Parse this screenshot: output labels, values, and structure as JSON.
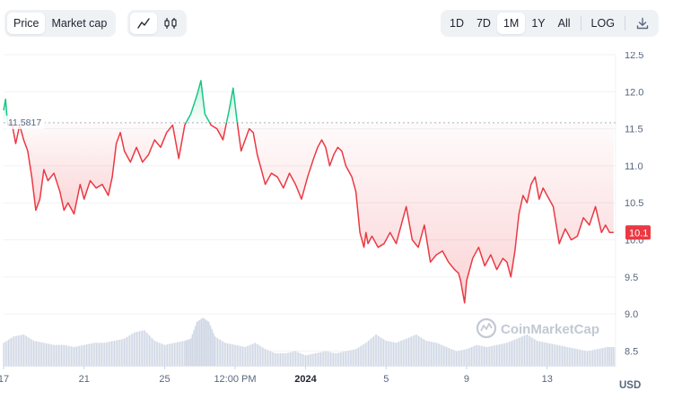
{
  "toolbar": {
    "type_options": [
      "Price",
      "Market cap"
    ],
    "active_type": "Price",
    "view_options": [
      {
        "name": "line-chart-icon"
      },
      {
        "name": "candlestick-icon"
      }
    ],
    "active_view": "line-chart-icon",
    "ranges": [
      "1D",
      "7D",
      "1M",
      "1Y",
      "All"
    ],
    "active_range": "1M",
    "log_label": "LOG",
    "download_icon": "download-icon"
  },
  "watermark": "CoinMarketCap",
  "currency": "USD",
  "colors": {
    "up": "#16c784",
    "down": "#ea3943",
    "price_tag_bg": "#ea3943",
    "axis_text": "#58667e",
    "volume": "#cfd6e4"
  },
  "chart_data": {
    "type": "line",
    "title": "",
    "xlabel": "",
    "ylabel": "",
    "ylim": [
      8.3,
      12.5
    ],
    "yticks": [
      8.5,
      9.0,
      9.5,
      10.0,
      10.5,
      11.0,
      11.5,
      12.0,
      12.5
    ],
    "ytick_labels": [
      "8.5",
      "9.0",
      "9.5",
      "10.0",
      "10.5",
      "11.0",
      "11.5",
      "12.0",
      "12.5"
    ],
    "xlim": [
      0,
      30.4
    ],
    "xticks": [
      {
        "x": 0.0,
        "label": "17",
        "bold": false
      },
      {
        "x": 4.0,
        "label": "21",
        "bold": false
      },
      {
        "x": 8.0,
        "label": "25",
        "bold": false
      },
      {
        "x": 11.5,
        "label": "12:00 PM",
        "bold": false
      },
      {
        "x": 15.0,
        "label": "2024",
        "bold": true
      },
      {
        "x": 19.0,
        "label": "5",
        "bold": false
      },
      {
        "x": 23.0,
        "label": "9",
        "bold": false
      },
      {
        "x": 27.0,
        "label": "13",
        "bold": false
      }
    ],
    "baseline": 11.5817,
    "baseline_label": "11.5817",
    "last_price": 10.1,
    "last_price_label": "10.1",
    "grid": true,
    "series": [
      {
        "x": [
          0.0,
          0.1,
          0.2,
          0.4,
          0.6,
          0.8,
          1.0,
          1.2,
          1.4,
          1.6,
          1.8,
          2.0,
          2.2,
          2.5,
          2.8,
          3.0,
          3.2,
          3.5,
          3.8,
          4.0,
          4.3,
          4.6,
          4.9,
          5.2,
          5.4,
          5.6,
          5.8,
          6.0,
          6.3,
          6.6,
          6.9,
          7.2,
          7.5,
          7.8,
          8.1,
          8.4,
          8.7,
          9.0,
          9.3,
          9.6,
          9.8,
          10.0,
          10.3,
          10.6,
          10.9,
          11.2,
          11.4,
          11.6,
          11.8,
          12.0,
          12.2,
          12.4,
          12.6,
          12.8,
          13.0,
          13.3,
          13.6,
          13.9,
          14.2,
          14.5,
          14.8,
          15.1,
          15.4,
          15.6,
          15.8,
          16.0,
          16.2,
          16.4,
          16.6,
          16.8,
          17.0,
          17.3,
          17.5,
          17.7,
          17.9,
          18.0,
          18.1,
          18.3,
          18.6,
          18.9,
          19.2,
          19.5,
          19.8,
          20.0,
          20.3,
          20.6,
          20.9,
          21.2,
          21.5,
          21.8,
          22.1,
          22.4,
          22.6,
          22.7,
          22.8,
          22.9,
          23.0,
          23.3,
          23.6,
          23.9,
          24.2,
          24.5,
          24.8,
          25.0,
          25.2,
          25.4,
          25.6,
          25.8,
          26.0,
          26.2,
          26.4,
          26.6,
          26.8,
          27.0,
          27.3,
          27.6,
          27.9,
          28.2,
          28.5,
          28.8,
          29.1,
          29.4,
          29.7,
          29.9,
          30.1,
          30.3
        ],
        "y": [
          11.75,
          11.9,
          11.55,
          11.6,
          11.3,
          11.55,
          11.35,
          11.2,
          10.85,
          10.4,
          10.55,
          10.95,
          10.8,
          10.9,
          10.65,
          10.4,
          10.5,
          10.35,
          10.75,
          10.55,
          10.8,
          10.7,
          10.75,
          10.6,
          10.85,
          11.3,
          11.45,
          11.2,
          11.05,
          11.25,
          11.05,
          11.15,
          11.35,
          11.25,
          11.45,
          11.55,
          11.1,
          11.55,
          11.7,
          11.95,
          12.15,
          11.7,
          11.55,
          11.5,
          11.35,
          11.75,
          12.05,
          11.6,
          11.2,
          11.35,
          11.5,
          11.45,
          11.15,
          10.95,
          10.75,
          10.9,
          10.85,
          10.7,
          10.9,
          10.75,
          10.55,
          10.85,
          11.1,
          11.25,
          11.35,
          11.25,
          11.0,
          11.15,
          11.25,
          11.2,
          11.0,
          10.85,
          10.65,
          10.1,
          9.9,
          10.1,
          9.95,
          10.05,
          9.9,
          9.95,
          10.1,
          9.95,
          10.25,
          10.45,
          10.0,
          9.9,
          10.2,
          9.7,
          9.8,
          9.85,
          9.7,
          9.6,
          9.55,
          9.45,
          9.3,
          9.15,
          9.45,
          9.75,
          9.9,
          9.65,
          9.8,
          9.6,
          9.75,
          9.7,
          9.5,
          9.85,
          10.35,
          10.6,
          10.5,
          10.75,
          10.85,
          10.55,
          10.7,
          10.6,
          10.45,
          9.95,
          10.15,
          10.0,
          10.05,
          10.3,
          10.2,
          10.45,
          10.1,
          10.2,
          10.1,
          10.1
        ]
      }
    ],
    "volume": {
      "x": [
        0.0,
        0.5,
        1.0,
        1.5,
        2.0,
        2.5,
        3.0,
        3.5,
        4.0,
        4.5,
        5.0,
        5.5,
        6.0,
        6.5,
        7.0,
        7.5,
        8.0,
        8.5,
        9.0,
        9.3,
        9.6,
        9.9,
        10.2,
        10.5,
        11.0,
        11.5,
        12.0,
        12.5,
        13.0,
        13.5,
        14.0,
        14.5,
        15.0,
        15.5,
        16.0,
        16.5,
        17.0,
        17.5,
        18.0,
        18.5,
        19.0,
        19.5,
        20.0,
        20.5,
        21.0,
        21.5,
        22.0,
        22.5,
        23.0,
        23.5,
        24.0,
        24.5,
        25.0,
        25.5,
        26.0,
        26.5,
        27.0,
        27.5,
        28.0,
        28.5,
        29.0,
        29.5,
        30.0,
        30.4
      ],
      "values": [
        0.55,
        0.7,
        0.75,
        0.6,
        0.55,
        0.5,
        0.5,
        0.45,
        0.5,
        0.55,
        0.55,
        0.6,
        0.65,
        0.8,
        0.85,
        0.6,
        0.5,
        0.55,
        0.6,
        0.65,
        1.05,
        1.15,
        1.05,
        0.7,
        0.55,
        0.5,
        0.45,
        0.55,
        0.4,
        0.3,
        0.3,
        0.35,
        0.25,
        0.3,
        0.35,
        0.3,
        0.35,
        0.4,
        0.55,
        0.75,
        0.6,
        0.55,
        0.65,
        0.75,
        0.6,
        0.55,
        0.45,
        0.35,
        0.4,
        0.5,
        0.45,
        0.5,
        0.55,
        0.65,
        0.75,
        0.6,
        0.55,
        0.5,
        0.45,
        0.4,
        0.35,
        0.4,
        0.45,
        0.45
      ]
    }
  }
}
